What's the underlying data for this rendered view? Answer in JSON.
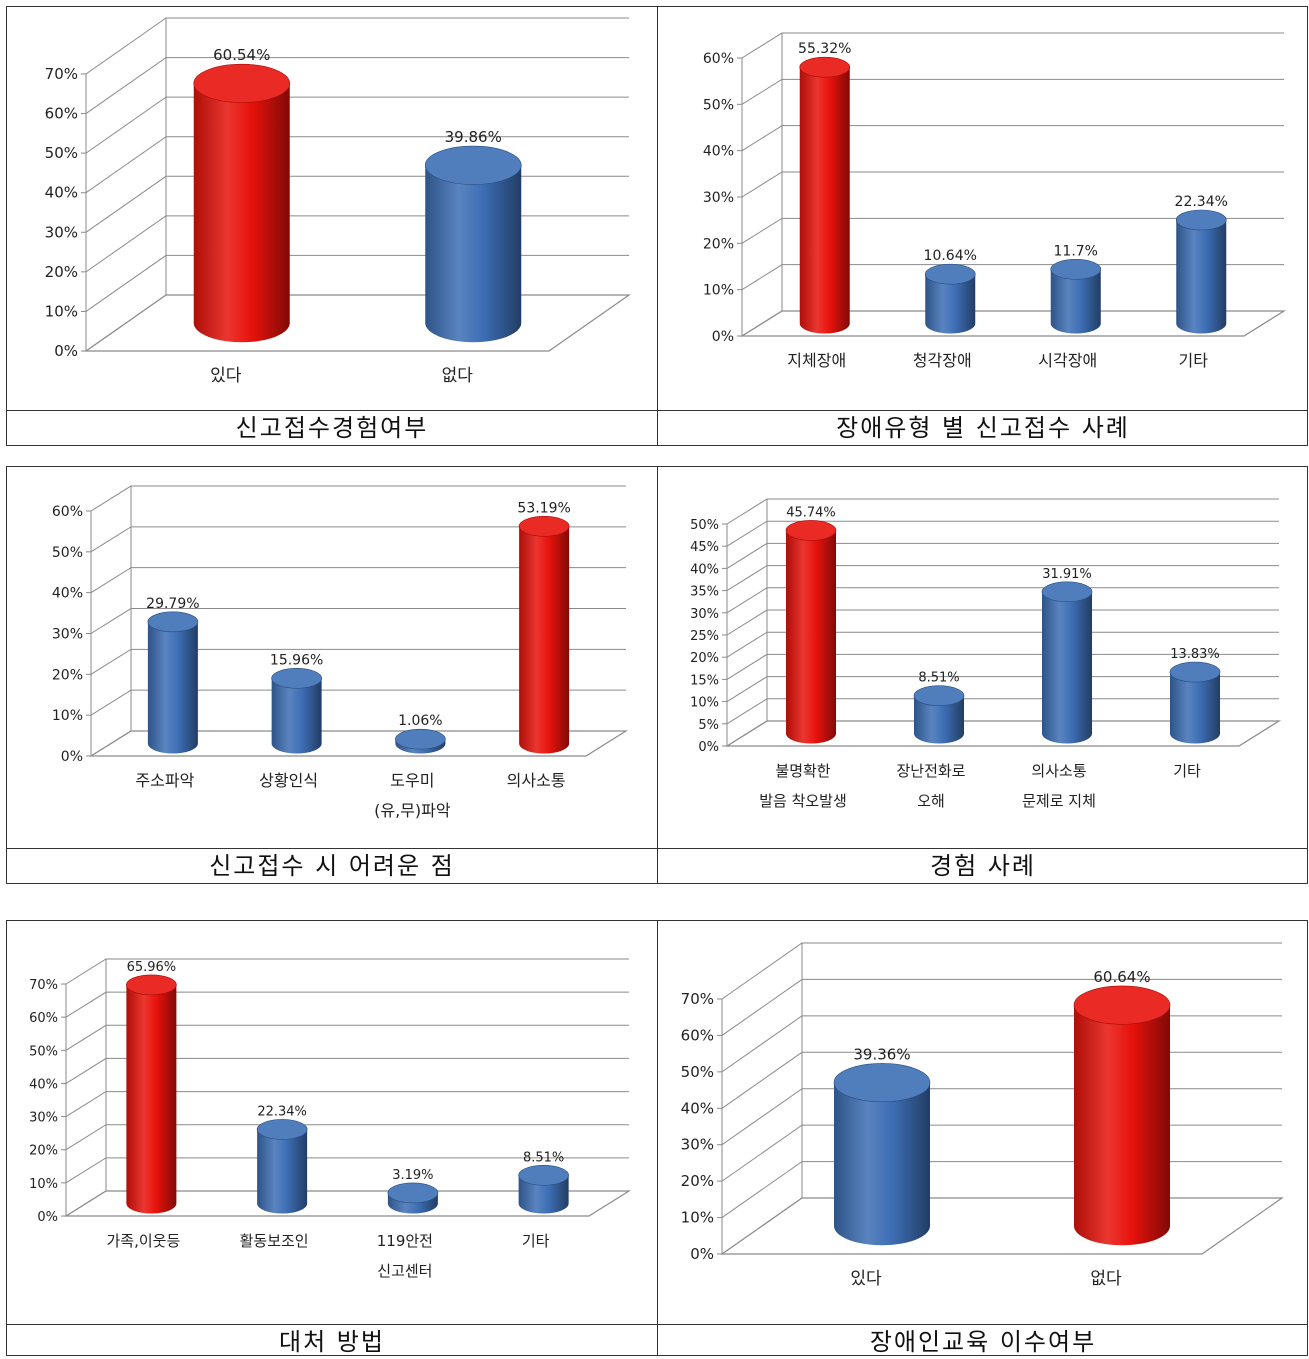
{
  "colors": {
    "red": "#e8120c",
    "blue": "#3d6eb5",
    "grid": "#8a8a8a",
    "text": "#222222"
  },
  "charts": [
    {
      "caption": "신고접수경험여부",
      "chart_data": {
        "type": "bar",
        "categories": [
          "있다",
          "없다"
        ],
        "values": [
          60.54,
          39.86
        ],
        "highlight": [
          true,
          false
        ],
        "value_labels": [
          "60.54%",
          "39.86%"
        ],
        "ylim": [
          0,
          70
        ],
        "yticks": [
          "0%",
          "10%",
          "20%",
          "30%",
          "40%",
          "50%",
          "60%",
          "70%"
        ],
        "grid": true
      }
    },
    {
      "caption": "장애유형 별 신고접수 사례",
      "chart_data": {
        "type": "bar",
        "categories": [
          "지체장애",
          "청각장애",
          "시각장애",
          "기타"
        ],
        "values": [
          55.32,
          10.64,
          11.7,
          22.34
        ],
        "highlight": [
          true,
          false,
          false,
          false
        ],
        "value_labels": [
          "55.32%",
          "10.64%",
          "11.7%",
          "22.34%"
        ],
        "ylim": [
          0,
          60
        ],
        "yticks": [
          "0%",
          "10%",
          "20%",
          "30%",
          "40%",
          "50%",
          "60%"
        ],
        "grid": true
      }
    },
    {
      "caption": "신고접수 시 어려운 점",
      "chart_data": {
        "type": "bar",
        "categories": [
          [
            "주소파악"
          ],
          [
            "상황인식"
          ],
          [
            "도우미",
            "(유,무)파악"
          ],
          [
            "의사소통"
          ]
        ],
        "values": [
          29.79,
          15.96,
          1.06,
          53.19
        ],
        "highlight": [
          false,
          false,
          false,
          true
        ],
        "value_labels": [
          "29.79%",
          "15.96%",
          "1.06%",
          "53.19%"
        ],
        "ylim": [
          0,
          60
        ],
        "yticks": [
          "0%",
          "10%",
          "20%",
          "30%",
          "40%",
          "50%",
          "60%"
        ],
        "grid": true
      }
    },
    {
      "caption": "경험 사례",
      "chart_data": {
        "type": "bar",
        "categories": [
          [
            "불명확한",
            "발음 착오발생"
          ],
          [
            "장난전화로",
            "오해"
          ],
          [
            "의사소통",
            "문제로 지체"
          ],
          [
            "기타"
          ]
        ],
        "values": [
          45.74,
          8.51,
          31.91,
          13.83
        ],
        "highlight": [
          true,
          false,
          false,
          false
        ],
        "value_labels": [
          "45.74%",
          "8.51%",
          "31.91%",
          "13.83%"
        ],
        "ylim": [
          0,
          50
        ],
        "yticks": [
          "0%",
          "5%",
          "10%",
          "15%",
          "20%",
          "25%",
          "30%",
          "35%",
          "40%",
          "45%",
          "50%"
        ],
        "grid": true
      }
    },
    {
      "caption": "대처 방법",
      "chart_data": {
        "type": "bar",
        "categories": [
          [
            "가족,이웃등"
          ],
          [
            "활동보조인"
          ],
          [
            "119안전",
            "신고센터"
          ],
          [
            "기타"
          ]
        ],
        "values": [
          65.96,
          22.34,
          3.19,
          8.51
        ],
        "highlight": [
          true,
          false,
          false,
          false
        ],
        "value_labels": [
          "65.96%",
          "22.34%",
          "3.19%",
          "8.51%"
        ],
        "ylim": [
          0,
          70
        ],
        "yticks": [
          "0%",
          "10%",
          "20%",
          "30%",
          "40%",
          "50%",
          "60%",
          "70%"
        ],
        "grid": true
      }
    },
    {
      "caption": "장애인교육 이수여부",
      "chart_data": {
        "type": "bar",
        "categories": [
          "있다",
          "없다"
        ],
        "values": [
          39.36,
          60.64
        ],
        "highlight": [
          false,
          true
        ],
        "value_labels": [
          "39.36%",
          "60.64%"
        ],
        "ylim": [
          0,
          70
        ],
        "yticks": [
          "0%",
          "10%",
          "20%",
          "30%",
          "40%",
          "50%",
          "60%",
          "70%"
        ],
        "grid": true
      }
    }
  ]
}
